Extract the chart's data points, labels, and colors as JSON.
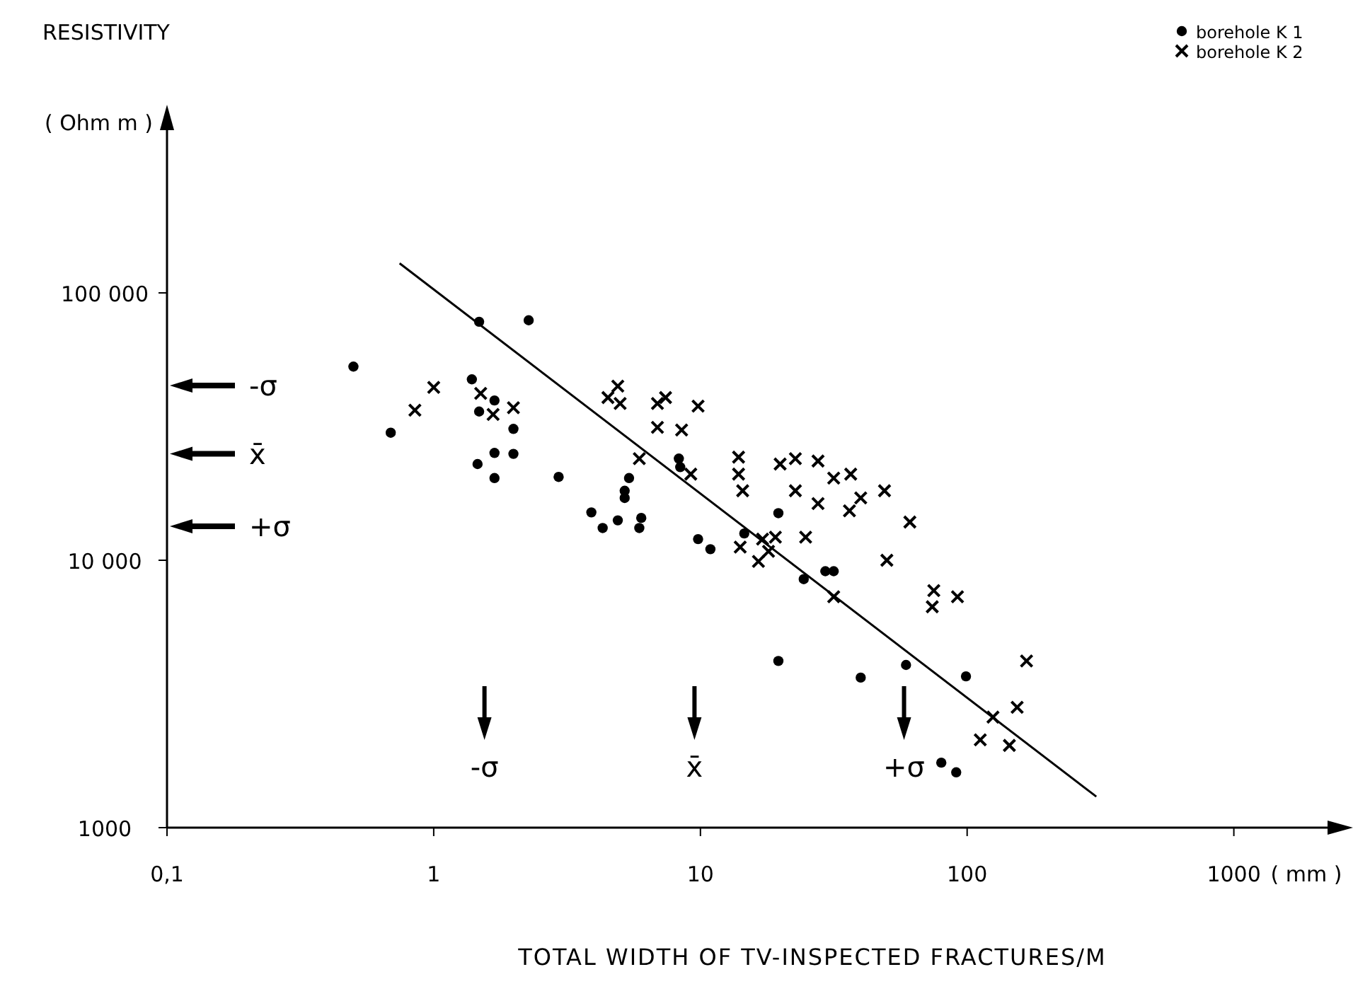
{
  "chart_data": {
    "type": "scatter",
    "title": "RESISTIVITY",
    "ylabel": "( Ohm m )",
    "xlabel": "TOTAL WIDTH OF TV-INSPECTED FRACTURES/M",
    "log": "xy",
    "grid": false,
    "legend": "top right",
    "xlim": [
      0.1,
      2600
    ],
    "ylim": [
      1000,
      470000
    ],
    "xticks": [
      {
        "value": 0.1,
        "label": "0,1"
      },
      1,
      10,
      100,
      1000
    ],
    "yticks": [
      1000,
      {
        "value": 10000,
        "label": "10 000"
      },
      {
        "value": 100000,
        "label": "100 000"
      }
    ],
    "annotations": [
      "( mm )"
    ],
    "ref_lines": [
      {
        "axis": "y",
        "value": 45000,
        "label": "-σ"
      },
      {
        "axis": "y",
        "value": 25000,
        "label": "x̄"
      },
      {
        "axis": "y",
        "value": 13400,
        "label": "+σ"
      },
      {
        "axis": "x",
        "value": 1.55,
        "label": "-σ"
      },
      {
        "axis": "x",
        "value": 9.5,
        "label": "x̄"
      },
      {
        "axis": "x",
        "value": 58,
        "label": "+σ"
      }
    ],
    "series": [
      {
        "name": "borehole K 1",
        "marker": "circle",
        "color": "#000000",
        "x": [
          0.5,
          1.48,
          2.27,
          0.69,
          1.39,
          1.69,
          1.48,
          1.99,
          1.69,
          1.99,
          1.46,
          1.69,
          2.94,
          3.9,
          8.3,
          8.4,
          5.4,
          5.2,
          5.2,
          4.3,
          4.9,
          6.0,
          5.9,
          9.8,
          10.9,
          14.6,
          19.6,
          24.4,
          29.4,
          31.6,
          19.6,
          39.9,
          59,
          99,
          80,
          91
        ],
        "values": [
          53000,
          78000,
          79000,
          30000,
          47500,
          39600,
          36000,
          31000,
          25200,
          25000,
          22900,
          20300,
          20500,
          15100,
          24000,
          22300,
          20300,
          18200,
          17100,
          13200,
          14100,
          14400,
          13200,
          12000,
          11000,
          12600,
          15000,
          8500,
          9100,
          9100,
          4200,
          3640,
          4060,
          3680,
          1750,
          1610
        ]
      },
      {
        "name": "borehole K 2",
        "marker": "cross",
        "color": "#000000",
        "x": [
          1.0,
          0.85,
          1.5,
          1.67,
          1.99,
          4.9,
          4.5,
          5.0,
          6.9,
          7.4,
          9.8,
          6.9,
          8.5,
          5.9,
          9.2,
          13.9,
          13.9,
          14.4,
          19.9,
          22.7,
          27.6,
          31.6,
          36.6,
          39.9,
          36.2,
          22.7,
          27.6,
          49,
          61,
          24.8,
          19.1,
          17.1,
          14.1,
          16.5,
          18.0,
          50,
          31.6,
          75,
          92,
          74,
          167,
          125,
          154,
          112,
          144
        ],
        "values": [
          44300,
          36400,
          42100,
          35100,
          37200,
          44800,
          40600,
          38600,
          38600,
          40600,
          37700,
          31400,
          30700,
          24000,
          21000,
          24300,
          21000,
          18200,
          22900,
          24000,
          23500,
          20300,
          21000,
          17100,
          15300,
          18200,
          16300,
          18200,
          13900,
          12200,
          12200,
          12000,
          11200,
          9900,
          10800,
          10000,
          7300,
          7700,
          7300,
          6700,
          4200,
          2590,
          2820,
          2130,
          2030
        ]
      },
      {
        "type": "line",
        "marker": "none",
        "line_style": "solid",
        "color": "#000000",
        "x": [
          0.745,
          305
        ],
        "values": [
          129000,
          1306
        ]
      }
    ]
  }
}
